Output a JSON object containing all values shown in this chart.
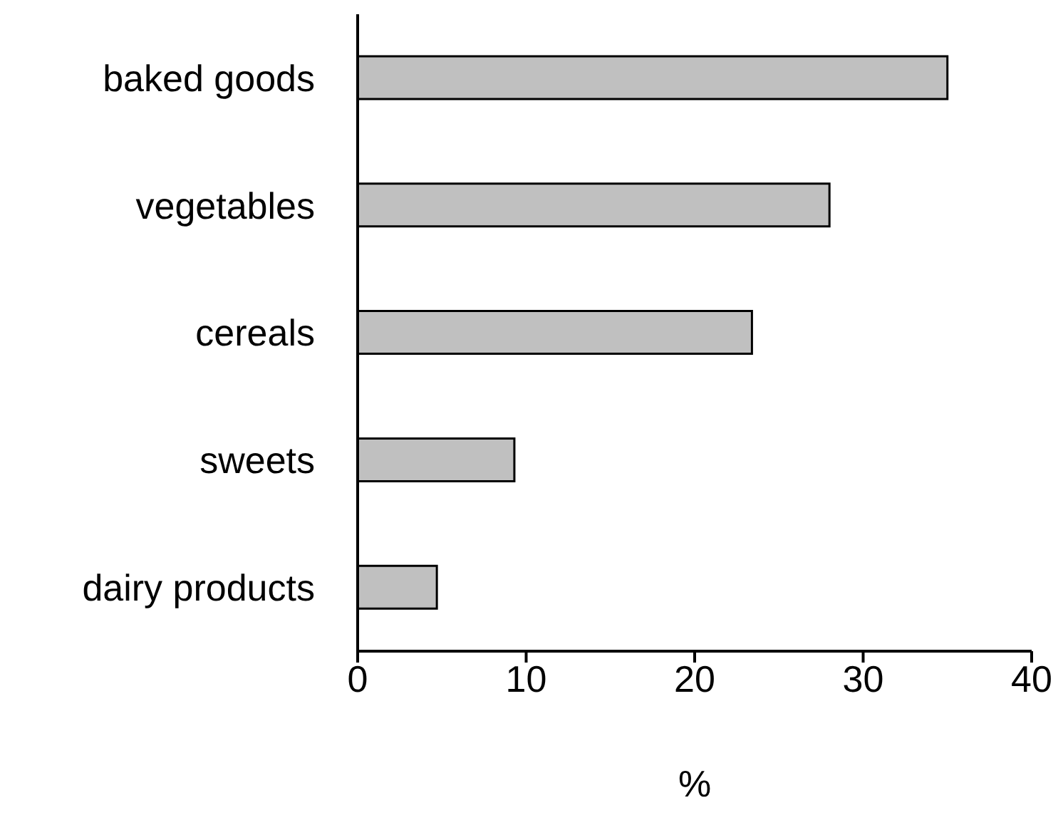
{
  "chart_data": {
    "type": "bar",
    "orientation": "horizontal",
    "categories": [
      "baked goods",
      "vegetables",
      "cereals",
      "sweets",
      "dairy products"
    ],
    "values": [
      35,
      28,
      23.4,
      9.3,
      4.7
    ],
    "color": "#c0c0c0",
    "xlim": [
      0,
      40
    ],
    "xticks": [
      0,
      10,
      20,
      30,
      40
    ],
    "xlabel": "%",
    "grid": false
  }
}
